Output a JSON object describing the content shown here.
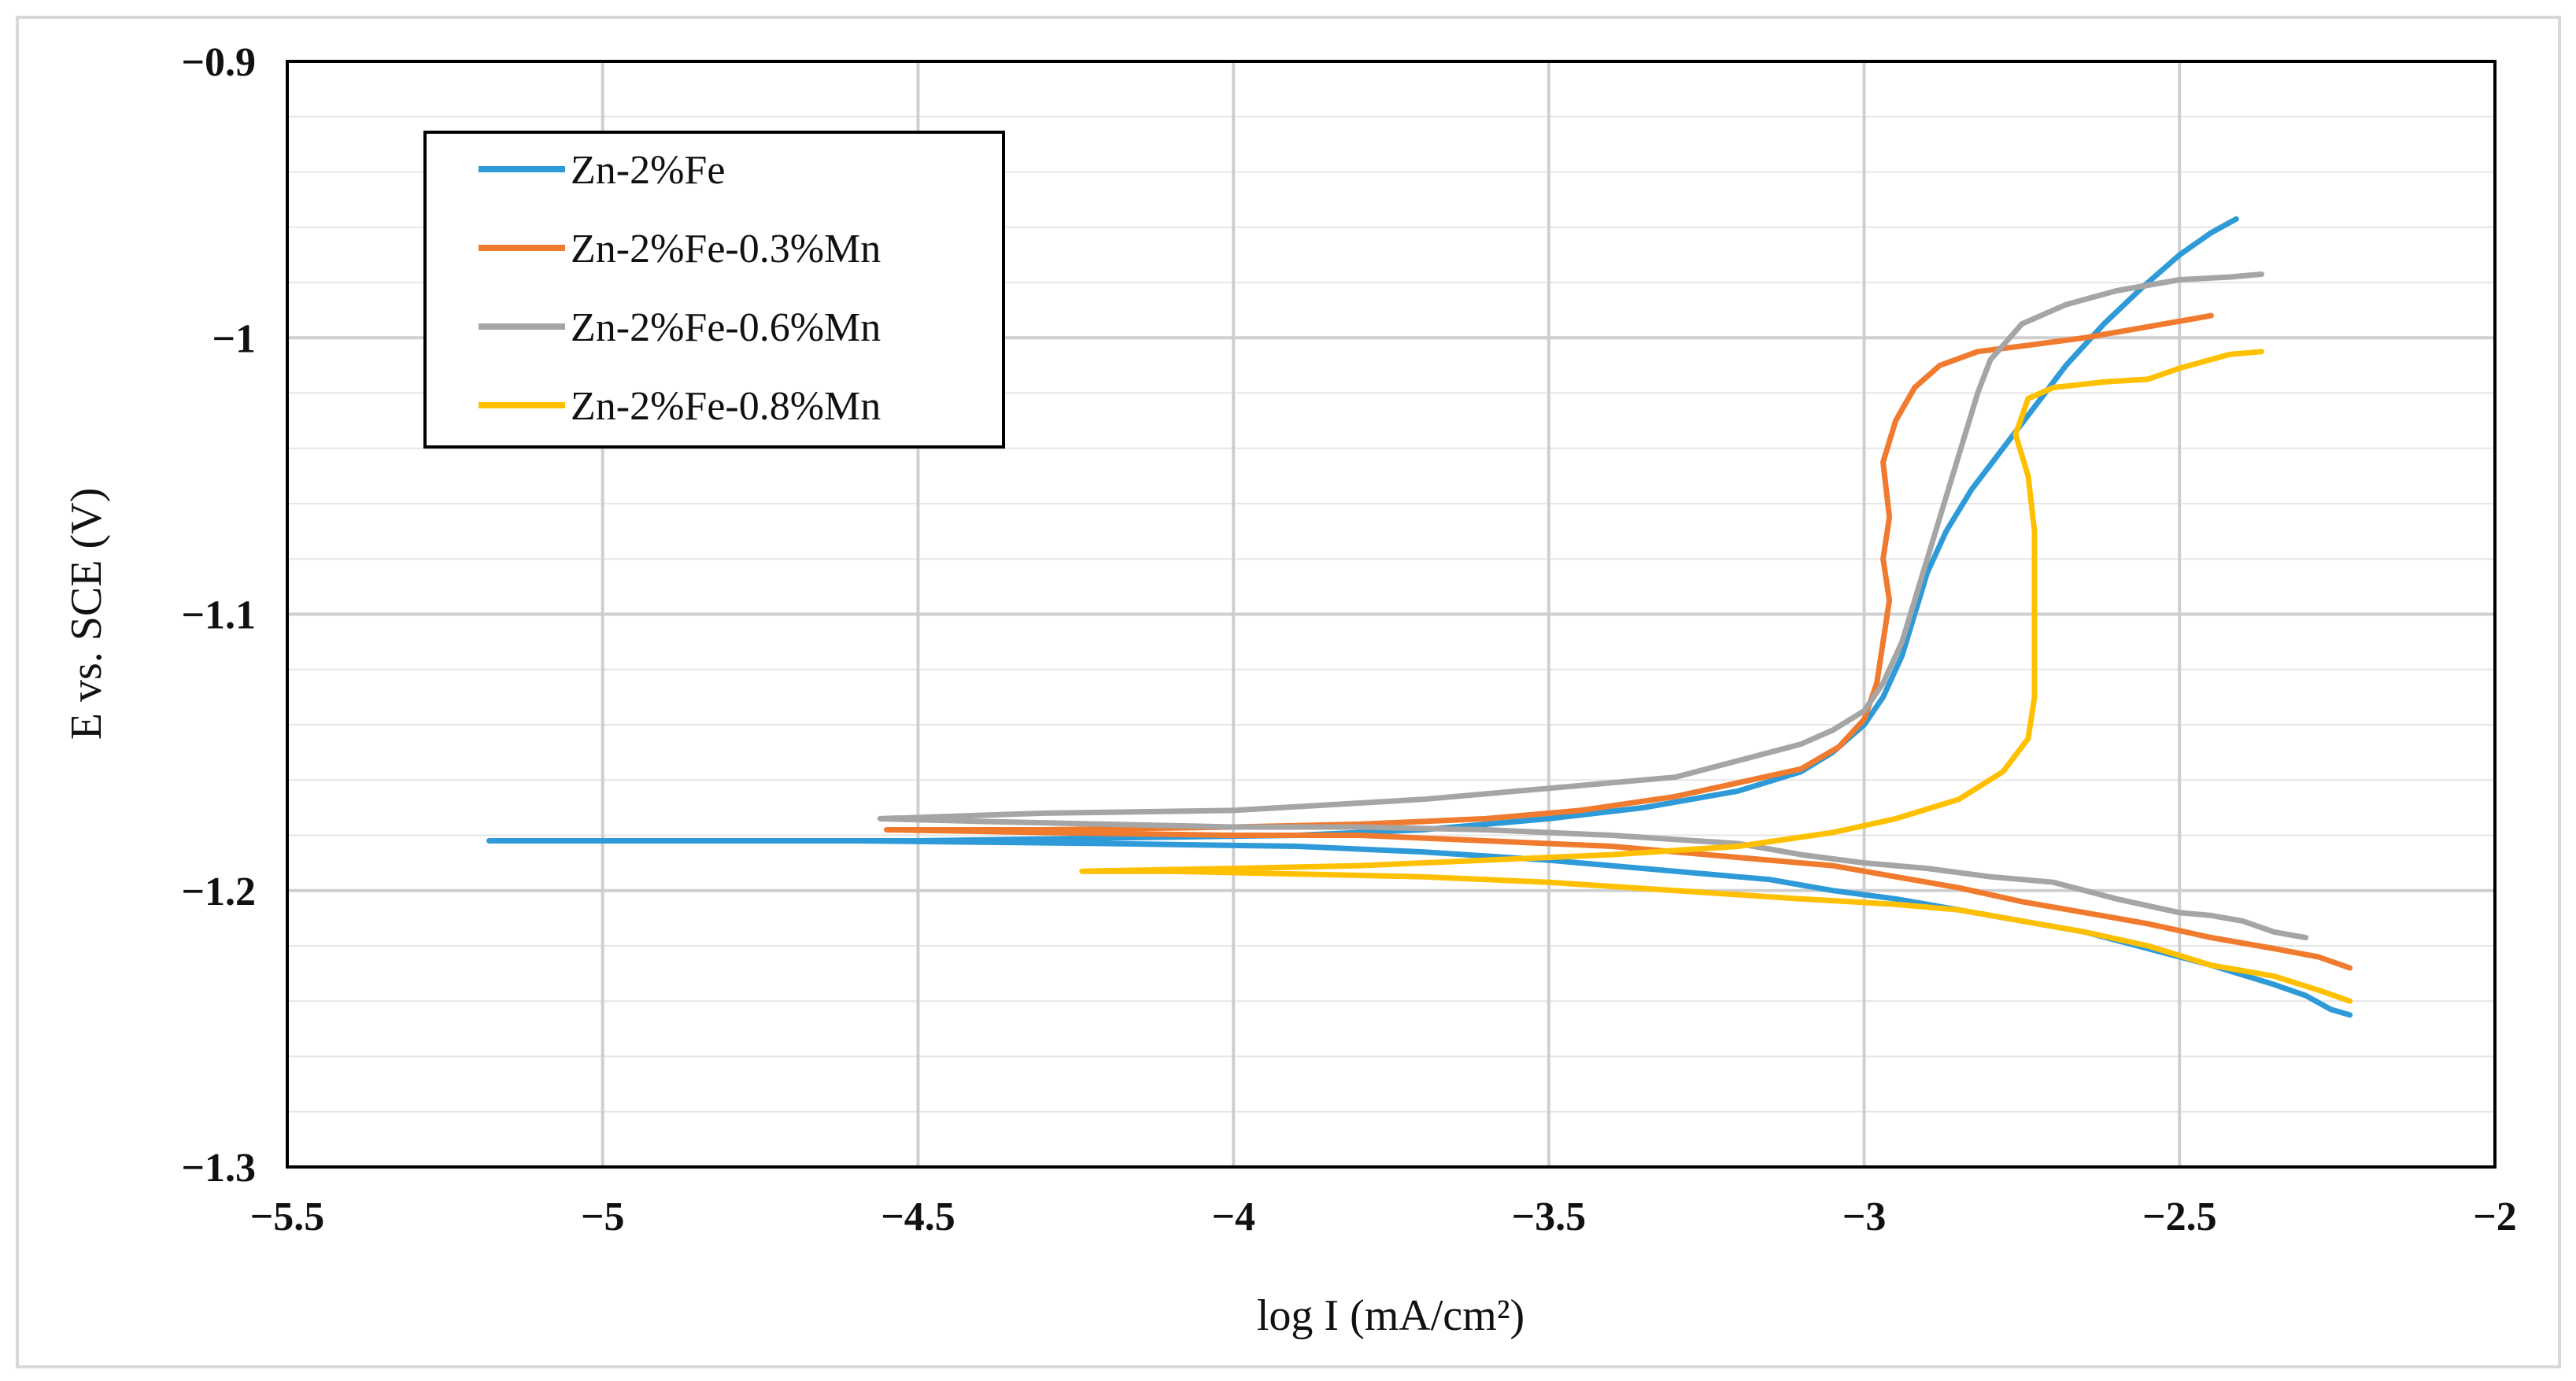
{
  "chart_data": {
    "type": "line",
    "title": "",
    "xlabel": "log I (mA/cm²)",
    "ylabel": "E vs. SCE (V)",
    "xlim": [
      -5.5,
      -2
    ],
    "ylim": [
      -1.3,
      -0.9
    ],
    "xticks": [
      -5.5,
      -5,
      -4.5,
      -4,
      -3.5,
      -3,
      -2.5,
      -2
    ],
    "xtick_labels": [
      "−5.5",
      "−5",
      "−4.5",
      "−4",
      "−3.5",
      "−3",
      "−2.5",
      "−2"
    ],
    "yticks": [
      -1.3,
      -1.2,
      -1.1,
      -1.0,
      -0.9
    ],
    "ytick_labels": [
      "−1.3",
      "−1.2",
      "−1.1",
      "−1",
      "−0.9"
    ],
    "grid": true,
    "legend_position": "top-left",
    "series": [
      {
        "name": "Zn-2%Fe",
        "color": "#2E9AD8",
        "points": [
          [
            -2.23,
            -1.245
          ],
          [
            -2.26,
            -1.243
          ],
          [
            -2.3,
            -1.238
          ],
          [
            -2.35,
            -1.234
          ],
          [
            -2.45,
            -1.227
          ],
          [
            -2.55,
            -1.221
          ],
          [
            -2.65,
            -1.215
          ],
          [
            -2.75,
            -1.211
          ],
          [
            -2.85,
            -1.207
          ],
          [
            -2.95,
            -1.203
          ],
          [
            -3.05,
            -1.2
          ],
          [
            -3.15,
            -1.196
          ],
          [
            -3.3,
            -1.193
          ],
          [
            -3.5,
            -1.189
          ],
          [
            -3.7,
            -1.186
          ],
          [
            -3.9,
            -1.184
          ],
          [
            -4.2,
            -1.183
          ],
          [
            -4.6,
            -1.182
          ],
          [
            -5.0,
            -1.182
          ],
          [
            -5.18,
            -1.182
          ],
          [
            -4.9,
            -1.182
          ],
          [
            -4.5,
            -1.182
          ],
          [
            -4.2,
            -1.181
          ],
          [
            -3.9,
            -1.18
          ],
          [
            -3.7,
            -1.178
          ],
          [
            -3.5,
            -1.174
          ],
          [
            -3.35,
            -1.17
          ],
          [
            -3.2,
            -1.164
          ],
          [
            -3.1,
            -1.157
          ],
          [
            -3.05,
            -1.15
          ],
          [
            -3.0,
            -1.14
          ],
          [
            -2.97,
            -1.13
          ],
          [
            -2.94,
            -1.115
          ],
          [
            -2.92,
            -1.1
          ],
          [
            -2.9,
            -1.085
          ],
          [
            -2.87,
            -1.07
          ],
          [
            -2.83,
            -1.055
          ],
          [
            -2.78,
            -1.04
          ],
          [
            -2.73,
            -1.025
          ],
          [
            -2.68,
            -1.01
          ],
          [
            -2.62,
            -0.995
          ],
          [
            -2.56,
            -0.982
          ],
          [
            -2.5,
            -0.97
          ],
          [
            -2.45,
            -0.962
          ],
          [
            -2.41,
            -0.957
          ]
        ]
      },
      {
        "name": "Zn-2%Fe-0.3%Mn",
        "color": "#F07A2E",
        "points": [
          [
            -2.23,
            -1.228
          ],
          [
            -2.28,
            -1.224
          ],
          [
            -2.35,
            -1.221
          ],
          [
            -2.45,
            -1.217
          ],
          [
            -2.55,
            -1.212
          ],
          [
            -2.65,
            -1.208
          ],
          [
            -2.75,
            -1.204
          ],
          [
            -2.85,
            -1.199
          ],
          [
            -2.95,
            -1.195
          ],
          [
            -3.05,
            -1.191
          ],
          [
            -3.2,
            -1.188
          ],
          [
            -3.4,
            -1.184
          ],
          [
            -3.6,
            -1.182
          ],
          [
            -3.8,
            -1.18
          ],
          [
            -4.0,
            -1.18
          ],
          [
            -4.3,
            -1.179
          ],
          [
            -4.55,
            -1.178
          ],
          [
            -4.3,
            -1.178
          ],
          [
            -4.0,
            -1.177
          ],
          [
            -3.8,
            -1.176
          ],
          [
            -3.6,
            -1.174
          ],
          [
            -3.45,
            -1.171
          ],
          [
            -3.3,
            -1.166
          ],
          [
            -3.2,
            -1.161
          ],
          [
            -3.1,
            -1.156
          ],
          [
            -3.04,
            -1.148
          ],
          [
            -3.0,
            -1.138
          ],
          [
            -2.98,
            -1.125
          ],
          [
            -2.97,
            -1.11
          ],
          [
            -2.96,
            -1.095
          ],
          [
            -2.97,
            -1.08
          ],
          [
            -2.96,
            -1.065
          ],
          [
            -2.97,
            -1.045
          ],
          [
            -2.95,
            -1.03
          ],
          [
            -2.92,
            -1.018
          ],
          [
            -2.88,
            -1.01
          ],
          [
            -2.82,
            -1.005
          ],
          [
            -2.75,
            -1.003
          ],
          [
            -2.65,
            -1.0
          ],
          [
            -2.55,
            -0.996
          ],
          [
            -2.5,
            -0.994
          ],
          [
            -2.45,
            -0.992
          ]
        ]
      },
      {
        "name": "Zn-2%Fe-0.6%Mn",
        "color": "#A5A5A5",
        "points": [
          [
            -2.3,
            -1.217
          ],
          [
            -2.35,
            -1.215
          ],
          [
            -2.4,
            -1.211
          ],
          [
            -2.45,
            -1.209
          ],
          [
            -2.5,
            -1.208
          ],
          [
            -2.6,
            -1.203
          ],
          [
            -2.7,
            -1.197
          ],
          [
            -2.8,
            -1.195
          ],
          [
            -2.9,
            -1.192
          ],
          [
            -3.0,
            -1.19
          ],
          [
            -3.1,
            -1.187
          ],
          [
            -3.2,
            -1.183
          ],
          [
            -3.4,
            -1.18
          ],
          [
            -3.6,
            -1.178
          ],
          [
            -3.8,
            -1.177
          ],
          [
            -4.0,
            -1.177
          ],
          [
            -4.2,
            -1.176
          ],
          [
            -4.4,
            -1.175
          ],
          [
            -4.56,
            -1.174
          ],
          [
            -4.3,
            -1.172
          ],
          [
            -4.0,
            -1.171
          ],
          [
            -3.7,
            -1.167
          ],
          [
            -3.5,
            -1.163
          ],
          [
            -3.3,
            -1.159
          ],
          [
            -3.2,
            -1.153
          ],
          [
            -3.1,
            -1.147
          ],
          [
            -3.05,
            -1.142
          ],
          [
            -3.0,
            -1.135
          ],
          [
            -2.97,
            -1.125
          ],
          [
            -2.94,
            -1.11
          ],
          [
            -2.92,
            -1.095
          ],
          [
            -2.9,
            -1.08
          ],
          [
            -2.88,
            -1.065
          ],
          [
            -2.86,
            -1.05
          ],
          [
            -2.84,
            -1.035
          ],
          [
            -2.82,
            -1.02
          ],
          [
            -2.8,
            -1.008
          ],
          [
            -2.75,
            -0.995
          ],
          [
            -2.68,
            -0.988
          ],
          [
            -2.6,
            -0.983
          ],
          [
            -2.5,
            -0.979
          ],
          [
            -2.42,
            -0.978
          ],
          [
            -2.37,
            -0.977
          ]
        ]
      },
      {
        "name": "Zn-2%Fe-0.8%Mn",
        "color": "#FFC000",
        "points": [
          [
            -2.23,
            -1.24
          ],
          [
            -2.28,
            -1.236
          ],
          [
            -2.35,
            -1.231
          ],
          [
            -2.45,
            -1.227
          ],
          [
            -2.55,
            -1.22
          ],
          [
            -2.65,
            -1.215
          ],
          [
            -2.75,
            -1.211
          ],
          [
            -2.85,
            -1.207
          ],
          [
            -2.95,
            -1.205
          ],
          [
            -3.1,
            -1.203
          ],
          [
            -3.3,
            -1.2
          ],
          [
            -3.5,
            -1.197
          ],
          [
            -3.7,
            -1.195
          ],
          [
            -3.9,
            -1.194
          ],
          [
            -4.1,
            -1.193
          ],
          [
            -4.24,
            -1.193
          ],
          [
            -4.0,
            -1.192
          ],
          [
            -3.8,
            -1.191
          ],
          [
            -3.6,
            -1.189
          ],
          [
            -3.4,
            -1.187
          ],
          [
            -3.2,
            -1.184
          ],
          [
            -3.05,
            -1.179
          ],
          [
            -2.95,
            -1.174
          ],
          [
            -2.85,
            -1.167
          ],
          [
            -2.78,
            -1.157
          ],
          [
            -2.74,
            -1.145
          ],
          [
            -2.73,
            -1.13
          ],
          [
            -2.73,
            -1.11
          ],
          [
            -2.73,
            -1.09
          ],
          [
            -2.73,
            -1.07
          ],
          [
            -2.74,
            -1.05
          ],
          [
            -2.76,
            -1.035
          ],
          [
            -2.74,
            -1.022
          ],
          [
            -2.7,
            -1.018
          ],
          [
            -2.62,
            -1.016
          ],
          [
            -2.55,
            -1.015
          ],
          [
            -2.5,
            -1.011
          ],
          [
            -2.42,
            -1.006
          ],
          [
            -2.37,
            -1.005
          ]
        ]
      }
    ]
  }
}
